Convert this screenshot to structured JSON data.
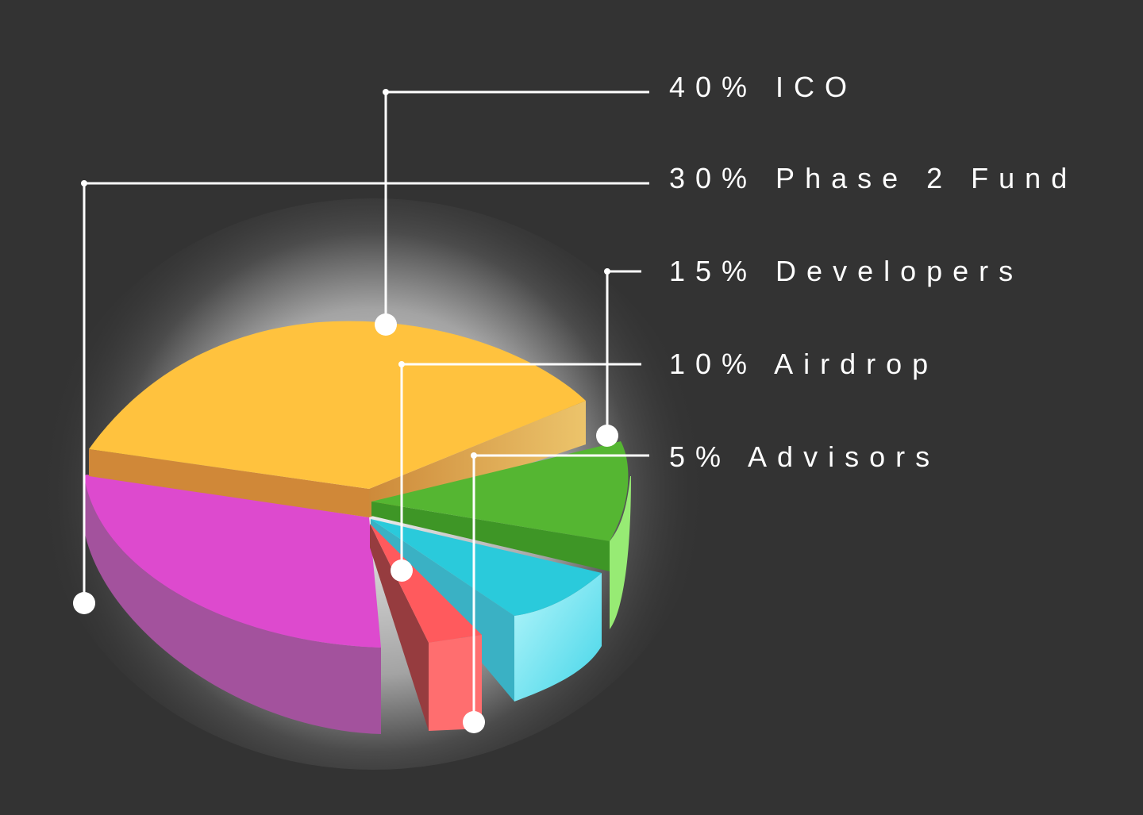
{
  "chart_data": {
    "type": "pie",
    "style": "3d-exploded",
    "background": "#333333",
    "slices": [
      {
        "label": "ICO",
        "value": 40,
        "text": "40% ICO",
        "color": "#FFC23E",
        "side_color": "#D08838"
      },
      {
        "label": "Phase 2 Fund",
        "value": 30,
        "text": "30% Phase 2 Fund",
        "color": "#DD4ACE",
        "side_color": "#A3529D"
      },
      {
        "label": "Developers",
        "value": 15,
        "text": "15% Developers",
        "color": "#55B632",
        "side_color": "#97EB74"
      },
      {
        "label": "Airdrop",
        "value": 10,
        "text": "10% Airdrop",
        "color": "#2ACADB",
        "side_color": "#5ADDEB"
      },
      {
        "label": "Advisors",
        "value": 5,
        "text": "5% Advisors",
        "color": "#FF5A5D",
        "side_color": "#FF6E6F"
      }
    ],
    "leader_line_color": "#ffffff"
  }
}
